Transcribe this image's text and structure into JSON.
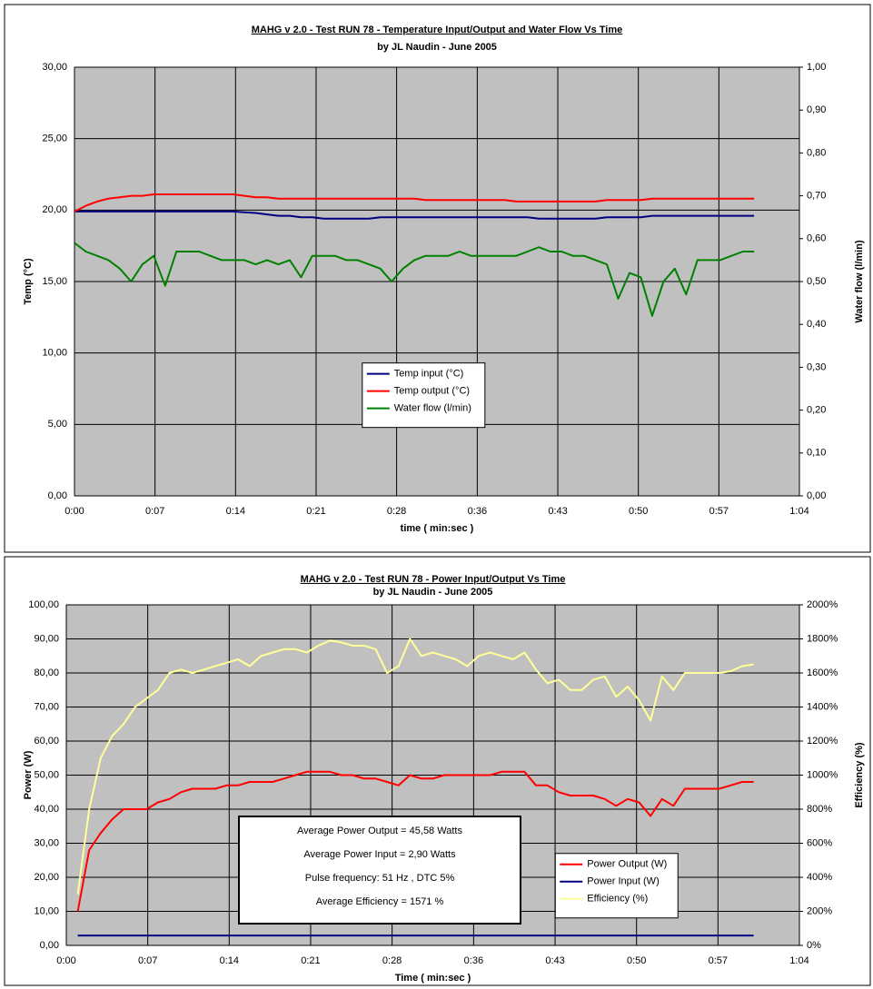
{
  "chart_data": [
    {
      "type": "line",
      "title": "MAHG v 2.0 - Test RUN 78 - Temperature Input/Output and Water Flow Vs Time",
      "subtitle": "by JL Naudin - June 2005",
      "x_label": "time  ( min:sec )",
      "y_label": "Temp (°C)",
      "y2_label": "Water flow   (l/min)",
      "xlim": [
        0,
        64
      ],
      "xticks": [
        {
          "value": 0,
          "label": "0:00"
        },
        {
          "value": 7.11,
          "label": "0:07"
        },
        {
          "value": 14.22,
          "label": "0:14"
        },
        {
          "value": 21.33,
          "label": "0:21"
        },
        {
          "value": 28.44,
          "label": "0:28"
        },
        {
          "value": 35.56,
          "label": "0:36"
        },
        {
          "value": 42.67,
          "label": "0:43"
        },
        {
          "value": 49.78,
          "label": "0:50"
        },
        {
          "value": 56.89,
          "label": "0:57"
        },
        {
          "value": 64,
          "label": "1:04"
        }
      ],
      "ylim": [
        0,
        30
      ],
      "yticks": [
        {
          "value": 0,
          "label": "0,00"
        },
        {
          "value": 5,
          "label": "5,00"
        },
        {
          "value": 10,
          "label": "10,00"
        },
        {
          "value": 15,
          "label": "15,00"
        },
        {
          "value": 20,
          "label": "20,00"
        },
        {
          "value": 25,
          "label": "25,00"
        },
        {
          "value": 30,
          "label": "30,00"
        }
      ],
      "y2lim": [
        0,
        1
      ],
      "y2ticks": [
        {
          "value": 0,
          "label": "0,00"
        },
        {
          "value": 0.1,
          "label": "0,10"
        },
        {
          "value": 0.2,
          "label": "0,20"
        },
        {
          "value": 0.3,
          "label": "0,30"
        },
        {
          "value": 0.4,
          "label": "0,40"
        },
        {
          "value": 0.5,
          "label": "0,50"
        },
        {
          "value": 0.6,
          "label": "0,60"
        },
        {
          "value": 0.7,
          "label": "0,70"
        },
        {
          "value": 0.8,
          "label": "0,80"
        },
        {
          "value": 0.9,
          "label": "0,90"
        },
        {
          "value": 1,
          "label": "1,00"
        }
      ],
      "grid": true,
      "legend": "center",
      "plot_color": "#c0c0c0",
      "x": [
        0,
        1,
        2,
        3,
        4,
        5,
        6,
        7,
        8,
        9,
        10,
        11,
        12,
        13,
        14,
        15,
        16,
        17,
        18,
        19,
        20,
        21,
        22,
        23,
        24,
        25,
        26,
        27,
        28,
        29,
        30,
        31,
        32,
        33,
        34,
        35,
        36,
        37,
        38,
        39,
        40,
        41,
        42,
        43,
        44,
        45,
        46,
        47,
        48,
        49,
        50,
        51,
        52,
        53,
        54,
        55,
        56,
        57,
        58,
        59,
        60
      ],
      "series": [
        {
          "name": "Temp input (°C)",
          "color": "#000080",
          "values": [
            19.9,
            19.9,
            19.9,
            19.9,
            19.9,
            19.9,
            19.9,
            19.9,
            19.9,
            19.9,
            19.9,
            19.9,
            19.9,
            19.9,
            19.9,
            19.85,
            19.8,
            19.7,
            19.6,
            19.6,
            19.5,
            19.5,
            19.4,
            19.4,
            19.4,
            19.4,
            19.4,
            19.5,
            19.5,
            19.5,
            19.5,
            19.5,
            19.5,
            19.5,
            19.5,
            19.5,
            19.5,
            19.5,
            19.5,
            19.5,
            19.5,
            19.4,
            19.4,
            19.4,
            19.4,
            19.4,
            19.4,
            19.5,
            19.5,
            19.5,
            19.5,
            19.6,
            19.6,
            19.6,
            19.6,
            19.6,
            19.6,
            19.6,
            19.6,
            19.6,
            19.6
          ]
        },
        {
          "name": "Temp output (°C)",
          "color": "#ff0000",
          "values": [
            19.9,
            20.3,
            20.6,
            20.8,
            20.9,
            21.0,
            21.0,
            21.1,
            21.1,
            21.1,
            21.1,
            21.1,
            21.1,
            21.1,
            21.1,
            21.0,
            20.9,
            20.9,
            20.8,
            20.8,
            20.8,
            20.8,
            20.8,
            20.8,
            20.8,
            20.8,
            20.8,
            20.8,
            20.8,
            20.8,
            20.8,
            20.7,
            20.7,
            20.7,
            20.7,
            20.7,
            20.7,
            20.7,
            20.7,
            20.6,
            20.6,
            20.6,
            20.6,
            20.6,
            20.6,
            20.6,
            20.6,
            20.7,
            20.7,
            20.7,
            20.7,
            20.8,
            20.8,
            20.8,
            20.8,
            20.8,
            20.8,
            20.8,
            20.8,
            20.8,
            20.8
          ]
        },
        {
          "name": "Water flow (l/min)",
          "color": "#008000",
          "axis": "y2",
          "values": [
            0.59,
            0.57,
            0.56,
            0.55,
            0.53,
            0.5,
            0.54,
            0.56,
            0.49,
            0.57,
            0.57,
            0.57,
            0.56,
            0.55,
            0.55,
            0.55,
            0.54,
            0.55,
            0.54,
            0.55,
            0.51,
            0.56,
            0.56,
            0.56,
            0.55,
            0.55,
            0.54,
            0.53,
            0.5,
            0.53,
            0.55,
            0.56,
            0.56,
            0.56,
            0.57,
            0.56,
            0.56,
            0.56,
            0.56,
            0.56,
            0.57,
            0.58,
            0.57,
            0.57,
            0.56,
            0.56,
            0.55,
            0.54,
            0.46,
            0.52,
            0.51,
            0.42,
            0.5,
            0.53,
            0.47,
            0.55,
            0.55,
            0.55,
            0.56,
            0.57,
            0.57
          ]
        }
      ]
    },
    {
      "type": "line",
      "title": "MAHG v 2.0 - Test RUN 78 - Power Input/Output Vs Time",
      "subtitle": "by JL Naudin - June 2005",
      "x_label": "Time  ( min:sec )",
      "y_label": "Power (W)",
      "y2_label": "Efficiency (%)",
      "xlim": [
        0,
        64
      ],
      "xticks": [
        {
          "value": 0,
          "label": "0:00"
        },
        {
          "value": 7.11,
          "label": "0:07"
        },
        {
          "value": 14.22,
          "label": "0:14"
        },
        {
          "value": 21.33,
          "label": "0:21"
        },
        {
          "value": 28.44,
          "label": "0:28"
        },
        {
          "value": 35.56,
          "label": "0:36"
        },
        {
          "value": 42.67,
          "label": "0:43"
        },
        {
          "value": 49.78,
          "label": "0:50"
        },
        {
          "value": 56.89,
          "label": "0:57"
        },
        {
          "value": 64,
          "label": "1:04"
        }
      ],
      "ylim": [
        0,
        100
      ],
      "yticks": [
        {
          "value": 0,
          "label": "0,00"
        },
        {
          "value": 10,
          "label": "10,00"
        },
        {
          "value": 20,
          "label": "20,00"
        },
        {
          "value": 30,
          "label": "30,00"
        },
        {
          "value": 40,
          "label": "40,00"
        },
        {
          "value": 50,
          "label": "50,00"
        },
        {
          "value": 60,
          "label": "60,00"
        },
        {
          "value": 70,
          "label": "70,00"
        },
        {
          "value": 80,
          "label": "80,00"
        },
        {
          "value": 90,
          "label": "90,00"
        },
        {
          "value": 100,
          "label": "100,00"
        }
      ],
      "y2lim": [
        0,
        2000
      ],
      "y2ticks": [
        {
          "value": 0,
          "label": "0%"
        },
        {
          "value": 200,
          "label": "200%"
        },
        {
          "value": 400,
          "label": "400%"
        },
        {
          "value": 600,
          "label": "600%"
        },
        {
          "value": 800,
          "label": "800%"
        },
        {
          "value": 1000,
          "label": "1000%"
        },
        {
          "value": 1200,
          "label": "1200%"
        },
        {
          "value": 1400,
          "label": "1400%"
        },
        {
          "value": 1600,
          "label": "1600%"
        },
        {
          "value": 1800,
          "label": "1800%"
        },
        {
          "value": 2000,
          "label": "2000%"
        }
      ],
      "grid": true,
      "legend": "lower right",
      "plot_color": "#c0c0c0",
      "annotations": [
        {
          "text": "Average Power Output = 45,58 Watts",
          "color": "#000000"
        },
        {
          "text": "Average Power Input = 2,90 Watts",
          "color": "#000000"
        },
        {
          "text": "Pulse frequency: 51 Hz  ,  DTC 5%",
          "color": "#000000"
        },
        {
          "text": "Average Efficiency =  1571 %",
          "color": "#ff0000"
        }
      ],
      "x": [
        1,
        2,
        3,
        4,
        5,
        6,
        7,
        8,
        9,
        10,
        11,
        12,
        13,
        14,
        15,
        16,
        17,
        18,
        19,
        20,
        21,
        22,
        23,
        24,
        25,
        26,
        27,
        28,
        29,
        30,
        31,
        32,
        33,
        34,
        35,
        36,
        37,
        38,
        39,
        40,
        41,
        42,
        43,
        44,
        45,
        46,
        47,
        48,
        49,
        50,
        51,
        52,
        53,
        54,
        55,
        56,
        57,
        58,
        59,
        60
      ],
      "series": [
        {
          "name": "Power Output (W)",
          "color": "#ff0000",
          "values": [
            10,
            28,
            33,
            37,
            40,
            40,
            40,
            42,
            43,
            45,
            46,
            46,
            46,
            47,
            47,
            48,
            48,
            48,
            49,
            50,
            51,
            51,
            51,
            50,
            50,
            49,
            49,
            48,
            47,
            50,
            49,
            49,
            50,
            50,
            50,
            50,
            50,
            51,
            51,
            51,
            47,
            47,
            45,
            44,
            44,
            44,
            43,
            41,
            43,
            42,
            38,
            43,
            41,
            46,
            46,
            46,
            46,
            47,
            48,
            48
          ]
        },
        {
          "name": "Power Input (W)",
          "color": "#000080",
          "values": [
            2.9,
            2.9,
            2.9,
            2.9,
            2.9,
            2.9,
            2.9,
            2.9,
            2.9,
            2.9,
            2.9,
            2.9,
            2.9,
            2.9,
            2.9,
            2.9,
            2.9,
            2.9,
            2.9,
            2.9,
            2.9,
            2.9,
            2.9,
            2.9,
            2.9,
            2.9,
            2.9,
            2.9,
            2.9,
            2.9,
            2.9,
            2.9,
            2.9,
            2.9,
            2.9,
            2.9,
            2.9,
            2.9,
            2.9,
            2.9,
            2.9,
            2.9,
            2.9,
            2.9,
            2.9,
            2.9,
            2.9,
            2.9,
            2.9,
            2.9,
            2.9,
            2.9,
            2.9,
            2.9,
            2.9,
            2.9,
            2.9,
            2.9,
            2.9,
            2.9
          ]
        },
        {
          "name": "Efficiency (%)",
          "color": "#ffff99",
          "axis": "y2",
          "values": [
            300,
            800,
            1100,
            1230,
            1300,
            1400,
            1450,
            1500,
            1600,
            1620,
            1600,
            1620,
            1640,
            1660,
            1680,
            1640,
            1700,
            1720,
            1740,
            1740,
            1720,
            1760,
            1790,
            1780,
            1760,
            1760,
            1740,
            1600,
            1640,
            1800,
            1700,
            1720,
            1700,
            1680,
            1640,
            1700,
            1720,
            1700,
            1680,
            1720,
            1620,
            1540,
            1560,
            1500,
            1500,
            1560,
            1580,
            1460,
            1520,
            1440,
            1320,
            1580,
            1500,
            1600,
            1600,
            1600,
            1600,
            1610,
            1640,
            1650
          ]
        }
      ]
    }
  ]
}
